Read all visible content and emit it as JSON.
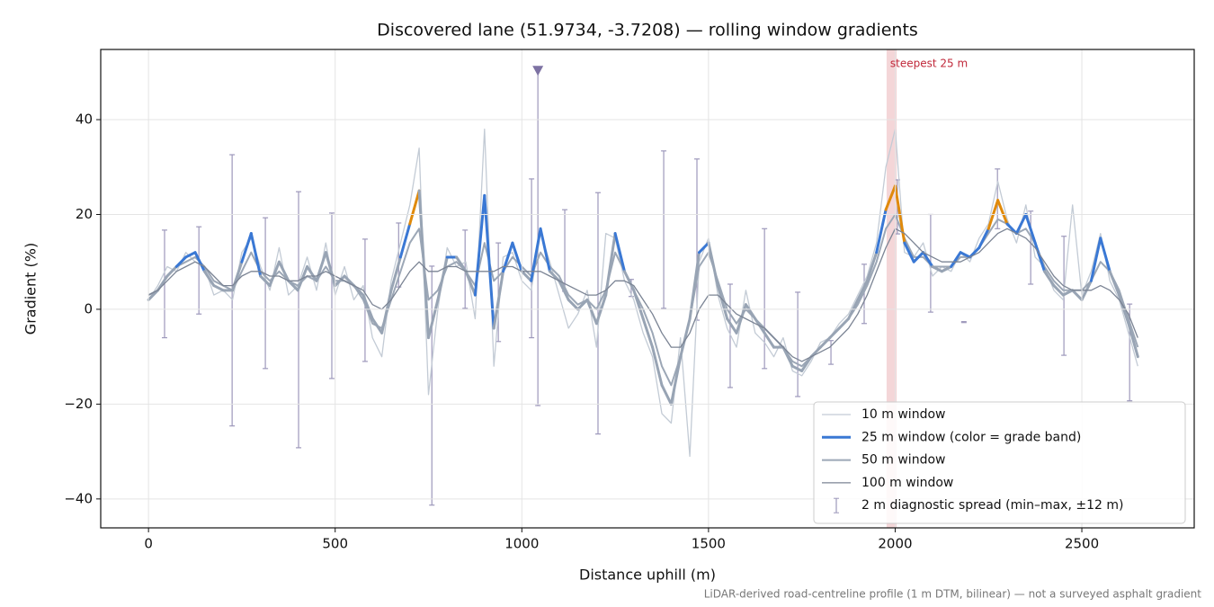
{
  "chart_data": {
    "type": "line",
    "title": "Discovered lane (51.9734, -3.7208) — rolling window gradients",
    "xlabel": "Distance uphill (m)",
    "ylabel": "Gradient (%)",
    "footnote": "LiDAR-derived road-centreline profile (1 m DTM, bilinear) — not a surveyed asphalt gradient",
    "xlim": [
      -128,
      2801
    ],
    "ylim": [
      -46.1,
      54.8
    ],
    "xticks": [
      0,
      500,
      1000,
      1500,
      2000,
      2500
    ],
    "yticks": [
      {
        "value": -40,
        "label": "−40"
      },
      {
        "value": -20,
        "label": "−20"
      },
      0,
      20,
      40
    ],
    "grid": true,
    "legend": "lower right",
    "x": [
      0,
      25,
      50,
      75,
      100,
      125,
      150,
      175,
      200,
      225,
      250,
      275,
      300,
      325,
      350,
      375,
      400,
      425,
      450,
      475,
      500,
      525,
      550,
      575,
      600,
      625,
      650,
      675,
      700,
      725,
      750,
      775,
      800,
      825,
      850,
      875,
      900,
      925,
      950,
      975,
      1000,
      1025,
      1050,
      1075,
      1100,
      1125,
      1150,
      1175,
      1200,
      1225,
      1250,
      1275,
      1300,
      1325,
      1350,
      1375,
      1400,
      1425,
      1450,
      1475,
      1500,
      1525,
      1550,
      1575,
      1600,
      1625,
      1650,
      1675,
      1700,
      1725,
      1750,
      1775,
      1800,
      1825,
      1850,
      1875,
      1900,
      1925,
      1950,
      1975,
      2000,
      2025,
      2050,
      2075,
      2100,
      2125,
      2150,
      2175,
      2200,
      2225,
      2250,
      2275,
      2300,
      2325,
      2350,
      2375,
      2400,
      2425,
      2450,
      2475,
      2500,
      2525,
      2550,
      2575,
      2600,
      2625,
      2650
    ],
    "series": [
      {
        "name": "10 m window",
        "color": "#c3cbd5",
        "width": 1.3,
        "values": [
          2,
          5,
          9,
          8,
          12,
          10,
          9,
          3,
          4,
          2,
          12,
          15,
          9,
          4,
          13,
          3,
          5,
          11,
          4,
          14,
          3,
          9,
          2,
          5,
          -6,
          -10,
          6,
          14,
          22,
          34,
          -18,
          0,
          13,
          9,
          10,
          -2,
          38,
          -12,
          11,
          12,
          6,
          4,
          16,
          10,
          3,
          -4,
          -1,
          4,
          -8,
          16,
          15,
          6,
          2,
          -5,
          -10,
          -22,
          -24,
          -6,
          -31,
          10,
          15,
          3,
          -4,
          -8,
          4,
          -5,
          -7,
          -10,
          -6,
          -13,
          -14,
          -11,
          -7,
          -6,
          -3,
          -1,
          3,
          7,
          14,
          30,
          38,
          12,
          11,
          14,
          7,
          9,
          8,
          12,
          10,
          15,
          18,
          27,
          19,
          14,
          22,
          11,
          9,
          4,
          2,
          22,
          3,
          8,
          16,
          6,
          2,
          -5,
          -12
        ]
      },
      {
        "name": "25 m window (color = grade band)",
        "color": "#3a78d4",
        "width": 3,
        "values": [
          2,
          4,
          7,
          9,
          11,
          12,
          8,
          5,
          4,
          4,
          10,
          16,
          7,
          5,
          10,
          6,
          4,
          9,
          6,
          12,
          5,
          7,
          5,
          3,
          -2,
          -5,
          4,
          11,
          18,
          25,
          -6,
          2,
          11,
          11,
          8,
          3,
          24,
          -4,
          8,
          14,
          8,
          6,
          17,
          8,
          6,
          2,
          0,
          2,
          -3,
          3,
          16,
          8,
          4,
          -2,
          -8,
          -16,
          -20,
          -10,
          -2,
          12,
          14,
          5,
          -2,
          -5,
          1,
          -2,
          -5,
          -8,
          -8,
          -12,
          -13,
          -10,
          -8,
          -6,
          -4,
          -2,
          2,
          6,
          12,
          21,
          26,
          14,
          10,
          12,
          9,
          8,
          9,
          12,
          11,
          13,
          17,
          23,
          18,
          16,
          20,
          14,
          8,
          5,
          3,
          4,
          2,
          6,
          15,
          8,
          3,
          -3,
          -10
        ]
      },
      {
        "name": "50 m window",
        "color": "#9ca7b6",
        "width": 2,
        "values": [
          3,
          4,
          7,
          9,
          10,
          11,
          9,
          6,
          5,
          4,
          8,
          12,
          8,
          6,
          8,
          6,
          5,
          7,
          6,
          9,
          6,
          6,
          5,
          2,
          -3,
          -4,
          2,
          8,
          14,
          17,
          2,
          4,
          9,
          10,
          8,
          5,
          14,
          6,
          8,
          11,
          9,
          7,
          12,
          9,
          7,
          3,
          1,
          2,
          0,
          4,
          12,
          8,
          4,
          0,
          -5,
          -12,
          -16,
          -10,
          -2,
          9,
          12,
          6,
          0,
          -3,
          0,
          -2,
          -4,
          -6,
          -8,
          -11,
          -12,
          -10,
          -8,
          -6,
          -4,
          -2,
          1,
          5,
          10,
          17,
          20,
          15,
          11,
          11,
          9,
          9,
          9,
          11,
          11,
          13,
          16,
          19,
          18,
          16,
          17,
          14,
          9,
          6,
          4,
          4,
          4,
          6,
          10,
          8,
          4,
          -2,
          -8
        ]
      },
      {
        "name": "100 m window",
        "color": "#7b8494",
        "width": 1.3,
        "values": [
          3,
          4,
          6,
          8,
          9,
          10,
          9,
          7,
          5,
          5,
          7,
          8,
          8,
          7,
          7,
          6,
          6,
          7,
          7,
          8,
          7,
          6,
          5,
          4,
          1,
          0,
          2,
          5,
          8,
          10,
          8,
          8,
          9,
          9,
          8,
          8,
          8,
          8,
          9,
          9,
          8,
          8,
          8,
          7,
          6,
          5,
          4,
          3,
          3,
          4,
          6,
          6,
          5,
          2,
          -1,
          -5,
          -8,
          -8,
          -5,
          0,
          3,
          3,
          1,
          -1,
          -2,
          -3,
          -4,
          -6,
          -8,
          -10,
          -11,
          -10,
          -9,
          -8,
          -6,
          -4,
          -1,
          3,
          8,
          13,
          17,
          16,
          14,
          12,
          11,
          10,
          10,
          10,
          11,
          12,
          14,
          16,
          17,
          16,
          15,
          13,
          10,
          7,
          5,
          4,
          4,
          4,
          5,
          4,
          2,
          -1,
          -6
        ]
      }
    ],
    "grade_bands": {
      "series": 1,
      "thresholds": [
        10,
        20,
        25
      ],
      "colors": [
        "#98a4b4",
        "#3a78d4",
        "#e08a0b",
        "#b5202e"
      ]
    },
    "spread": {
      "name": "2 m diagnostic spread (min–max, ±12 m)",
      "color": "#9d98bb",
      "x": [
        43,
        135,
        224,
        313,
        402,
        491,
        580,
        670,
        759,
        848,
        937,
        1026,
        1043,
        1115,
        1204,
        1293,
        1380,
        1469,
        1558,
        1650,
        1739,
        1828,
        1917,
        2006,
        2095,
        2184,
        2274,
        2363,
        2452,
        2628
      ],
      "low": [
        -6,
        -1,
        -24.6,
        -12.5,
        -29.2,
        -14.6,
        -11,
        4.7,
        -41.3,
        0.2,
        -6.8,
        -6,
        -20.3,
        3.8,
        -26.3,
        2.7,
        0.2,
        -2.3,
        -16.5,
        -12.5,
        -18.4,
        -11.6,
        -3,
        15.9,
        -0.6,
        -2.8,
        17,
        5.3,
        -9.7,
        -19.3
      ],
      "high": [
        16.7,
        17.4,
        32.6,
        19.3,
        24.8,
        20.3,
        14.8,
        18.2,
        9.1,
        16.7,
        14,
        27.5,
        50.4,
        21,
        24.6,
        6.3,
        33.4,
        31.7,
        5.3,
        17,
        3.6,
        -6.6,
        9.5,
        27.3,
        20,
        -2.6,
        29.6,
        20.7,
        15.4,
        1.1
      ]
    },
    "peak_marker": {
      "x": 1043,
      "y": 50.4,
      "color": "#7d72a3"
    },
    "highlight": {
      "label": "steepest 25 m",
      "x": [
        1977,
        2004
      ],
      "color": "#f0c4c8",
      "label_color": "#c0283a"
    }
  }
}
